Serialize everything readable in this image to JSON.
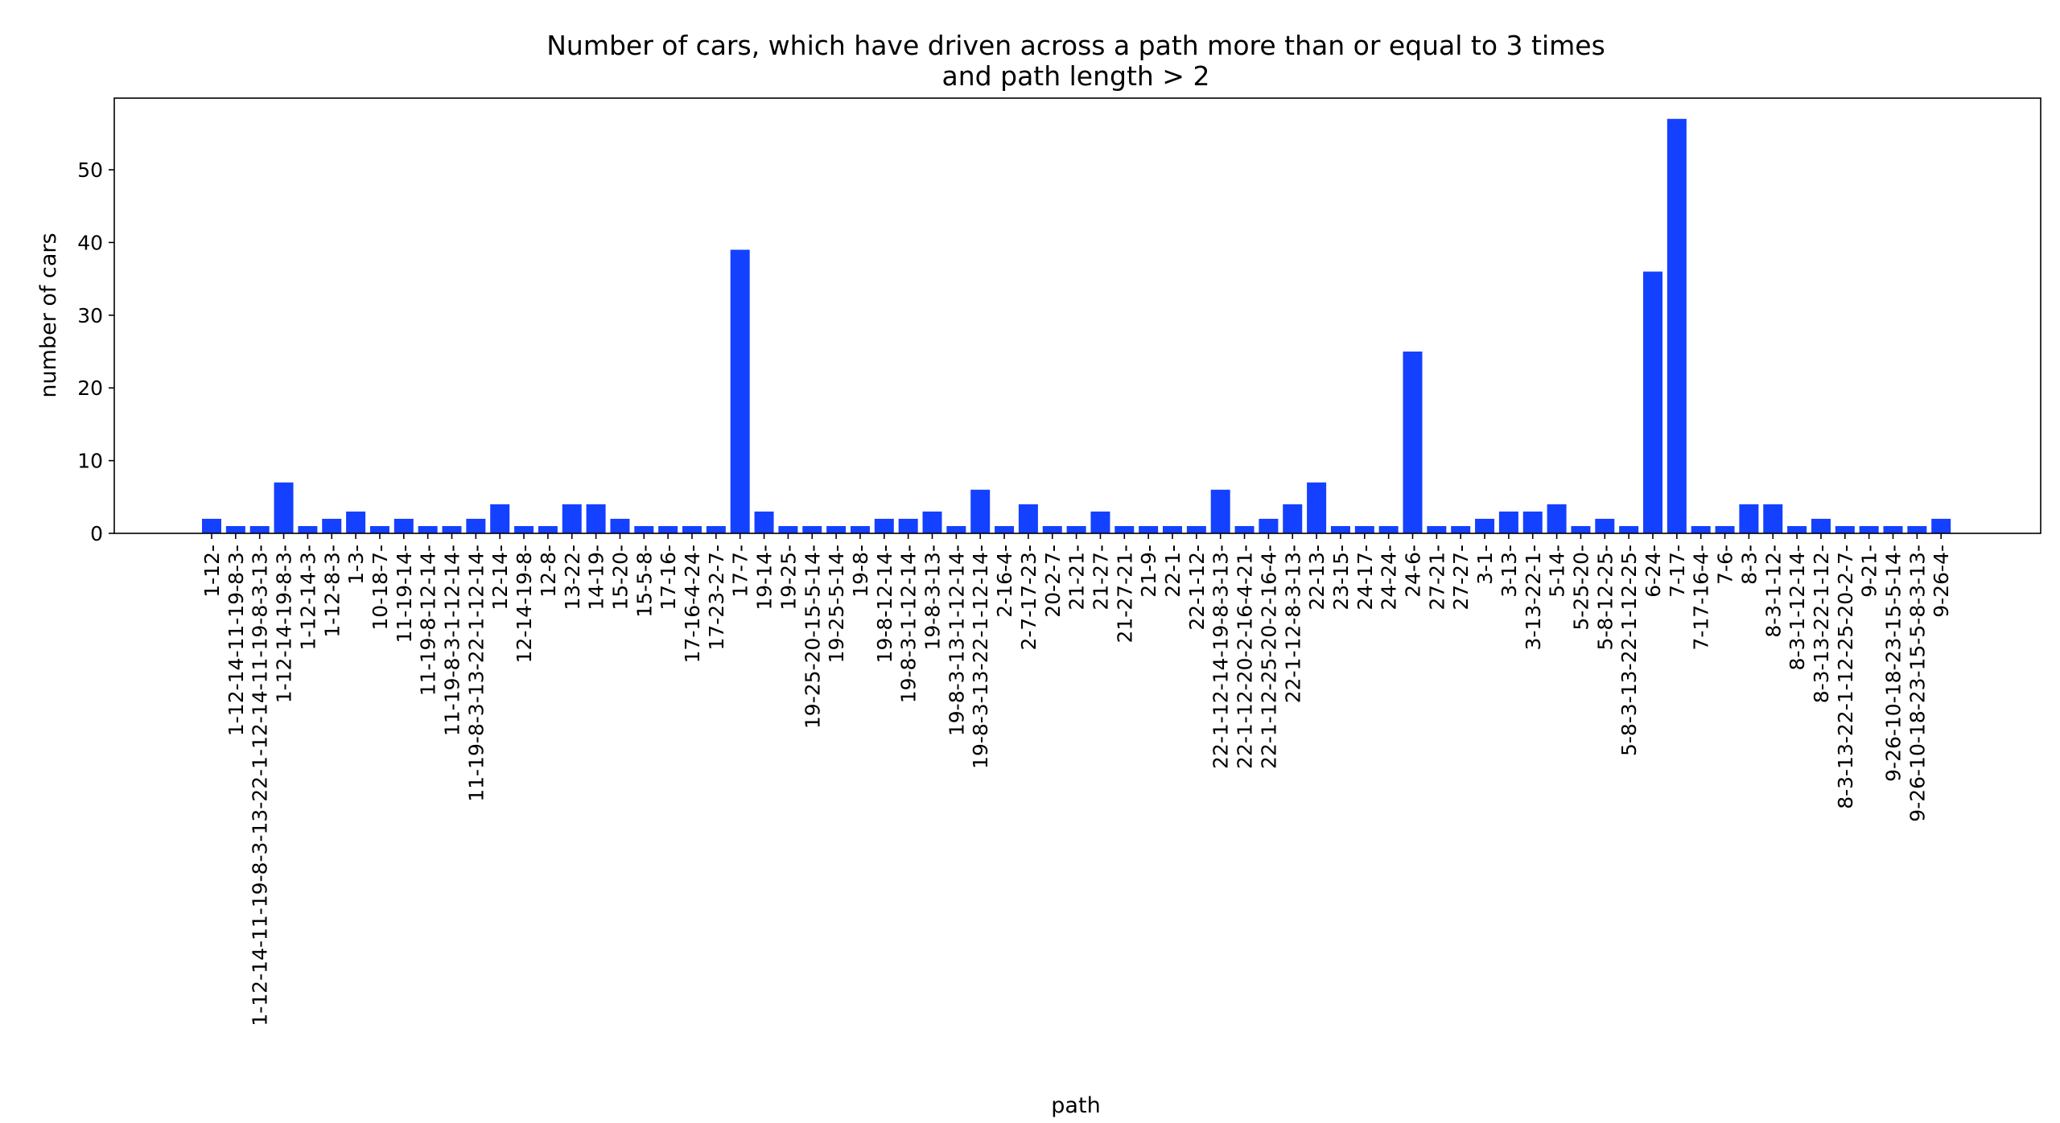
{
  "chart_data": {
    "type": "bar",
    "title": "Number of cars, which have driven across a path more than or equal to 3 times",
    "subtitle": "and path length > 2",
    "xlabel": "path",
    "ylabel": "number of cars",
    "ylim": [
      0,
      60
    ],
    "yticks": [
      0,
      10,
      20,
      30,
      40,
      50
    ],
    "grid": false,
    "bar_color": "#1440ff",
    "categories": [
      "1-12-",
      "1-12-14-11-19-8-3-",
      "1-12-14-11-19-8-3-13-22-1-12-14-11-19-8-3-13-",
      "1-12-14-19-8-3-",
      "1-12-14-3-",
      "1-12-8-3-",
      "1-3-",
      "10-18-7-",
      "11-19-14-",
      "11-19-8-12-14-",
      "11-19-8-3-1-12-14-",
      "11-19-8-3-13-22-1-12-14-",
      "12-14-",
      "12-14-19-8-",
      "12-8-",
      "13-22-",
      "14-19-",
      "15-20-",
      "15-5-8-",
      "17-16-",
      "17-16-4-24-",
      "17-23-2-7-",
      "17-7-",
      "19-14-",
      "19-25-",
      "19-25-20-15-5-14-",
      "19-25-5-14-",
      "19-8-",
      "19-8-12-14-",
      "19-8-3-1-12-14-",
      "19-8-3-13-",
      "19-8-3-13-1-12-14-",
      "19-8-3-13-22-1-12-14-",
      "2-16-4-",
      "2-7-17-23-",
      "20-2-7-",
      "21-21-",
      "21-27-",
      "21-27-21-",
      "21-9-",
      "22-1-",
      "22-1-12-",
      "22-1-12-14-19-8-3-13-",
      "22-1-12-20-2-16-4-21-",
      "22-1-12-25-20-2-16-4-",
      "22-1-12-8-3-13-",
      "22-13-",
      "23-15-",
      "24-17-",
      "24-24-",
      "24-6-",
      "27-21-",
      "27-27-",
      "3-1-",
      "3-13-",
      "3-13-22-1-",
      "5-14-",
      "5-25-20-",
      "5-8-12-25-",
      "5-8-3-13-22-1-12-25-",
      "6-24-",
      "7-17-",
      "7-17-16-4-",
      "7-6-",
      "8-3-",
      "8-3-1-12-",
      "8-3-1-12-14-",
      "8-3-13-22-1-12-",
      "8-3-13-22-1-12-25-20-2-7-",
      "9-21-",
      "9-26-10-18-23-15-5-14-",
      "9-26-10-18-23-15-5-8-3-13-",
      "9-26-4-"
    ],
    "values": [
      2,
      1,
      1,
      7,
      1,
      2,
      3,
      1,
      2,
      1,
      1,
      2,
      4,
      1,
      1,
      4,
      4,
      2,
      1,
      1,
      1,
      1,
      39,
      3,
      1,
      1,
      1,
      1,
      2,
      2,
      3,
      1,
      6,
      1,
      4,
      1,
      1,
      3,
      1,
      1,
      1,
      1,
      6,
      1,
      2,
      4,
      7,
      1,
      1,
      1,
      25,
      1,
      1,
      2,
      3,
      3,
      4,
      1,
      2,
      1,
      36,
      57,
      1,
      1,
      4,
      4,
      1,
      2,
      1,
      1,
      1,
      1,
      2
    ]
  }
}
